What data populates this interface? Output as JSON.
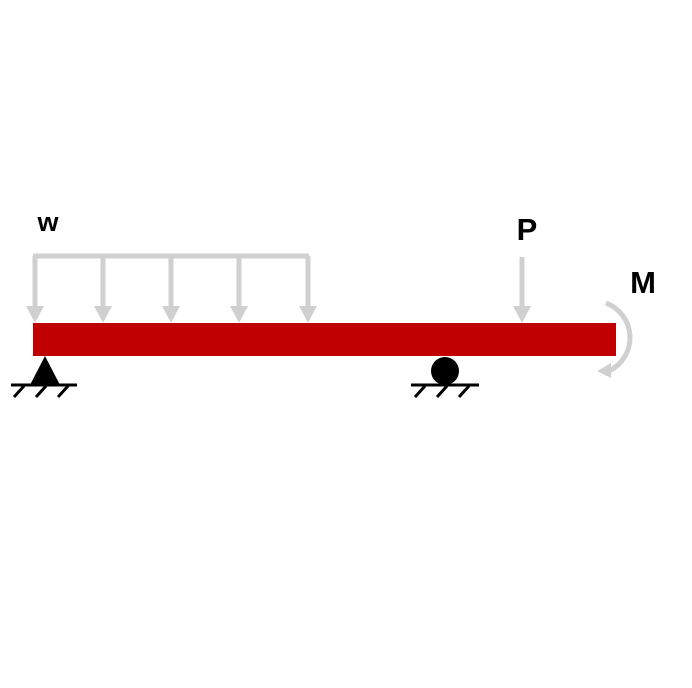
{
  "diagram": {
    "type": "beam-loading",
    "labels": {
      "distributed_load": "w",
      "point_load": "P",
      "moment": "M"
    },
    "supports": [
      "pin",
      "roller"
    ],
    "colors": {
      "beam": "#c00000",
      "loads": "#d0d0d0",
      "supports": "#000000",
      "background": "#ffffff"
    }
  }
}
